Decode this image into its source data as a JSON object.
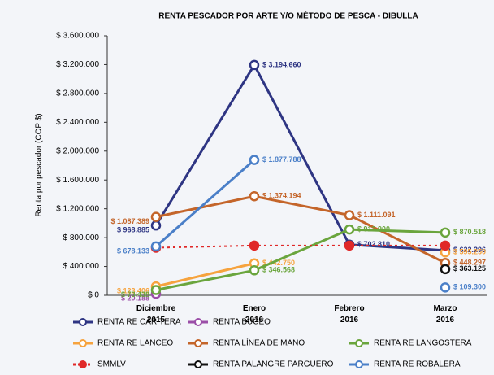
{
  "chart_data": {
    "type": "line",
    "title": "RENTA PESCADOR POR ARTE Y/O MÉTODO DE PESCA - DIBULLA",
    "y_label": "Renta por pescador (COP $)",
    "categories": [
      "Diciembre 2015",
      "Enero 2016",
      "Febrero 2016",
      "Marzo 2016"
    ],
    "ylim": [
      0,
      3600000
    ],
    "yticks": [
      {
        "value": 0,
        "label": "$ 0"
      },
      {
        "value": 400000,
        "label": "$ 400.000"
      },
      {
        "value": 800000,
        "label": "$ 800.000"
      },
      {
        "value": 1200000,
        "label": "$ 1.200.000"
      },
      {
        "value": 1600000,
        "label": "$ 1.600.000"
      },
      {
        "value": 2000000,
        "label": "$ 2.000.000"
      },
      {
        "value": 2400000,
        "label": "$ 2.400.000"
      },
      {
        "value": 2800000,
        "label": "$ 2.800.000"
      },
      {
        "value": 3200000,
        "label": "$ 3.200.000"
      },
      {
        "value": 3600000,
        "label": "$ 3.600.000"
      }
    ],
    "grid": false,
    "series": [
      {
        "name": "RENTA RE CARITERA",
        "color": "#2e3583",
        "values": [
          968885,
          3194660,
          702810,
          622296
        ],
        "value_labels": [
          "$ 968.885",
          "$ 3.194.660",
          "$ 702.810",
          "$ 622.296"
        ]
      },
      {
        "name": "RENTA BUCEO",
        "color": "#9b4fa8",
        "values": [
          20188,
          null,
          null,
          null
        ],
        "value_labels": [
          "$ 20.188",
          null,
          null,
          null
        ]
      },
      {
        "name": "RENTA RE LANCEO",
        "color": "#f6a33e",
        "values": [
          123406,
          442750,
          null,
          595250
        ],
        "value_labels": [
          "$ 123.406",
          "$ 442.750",
          null,
          "$ 595.250"
        ]
      },
      {
        "name": "RENTA LÍNEA DE MANO",
        "color": "#c4652a",
        "values": [
          1087389,
          1374194,
          1111091,
          448297
        ],
        "value_labels": [
          "$ 1.087.389",
          "$ 1.374.194",
          "$ 1.111.091",
          "$ 448.297"
        ]
      },
      {
        "name": "RENTA RE LANGOSTERA",
        "color": "#6aa53d",
        "values": [
          73438,
          346568,
          912900,
          870518
        ],
        "value_labels": [
          "$ 73.438",
          "$ 346.568",
          "$ 912.900",
          "$ 870.518"
        ]
      },
      {
        "name": "SMMLV",
        "color": "#e02828",
        "dashed": true,
        "values": [
          660000,
          690000,
          690000,
          690000
        ]
      },
      {
        "name": "RENTA PALANGRE PARGUERO",
        "color": "#111111",
        "values": [
          null,
          null,
          null,
          363125
        ],
        "value_labels": [
          null,
          null,
          null,
          "$ 363.125"
        ]
      },
      {
        "name": "RENTA RE ROBALERA",
        "color": "#4a7fc8",
        "values": [
          678133,
          1877788,
          null,
          109300
        ],
        "value_labels": [
          "$ 678.133",
          "$ 1.877.788",
          null,
          "$ 109.300"
        ]
      }
    ]
  }
}
